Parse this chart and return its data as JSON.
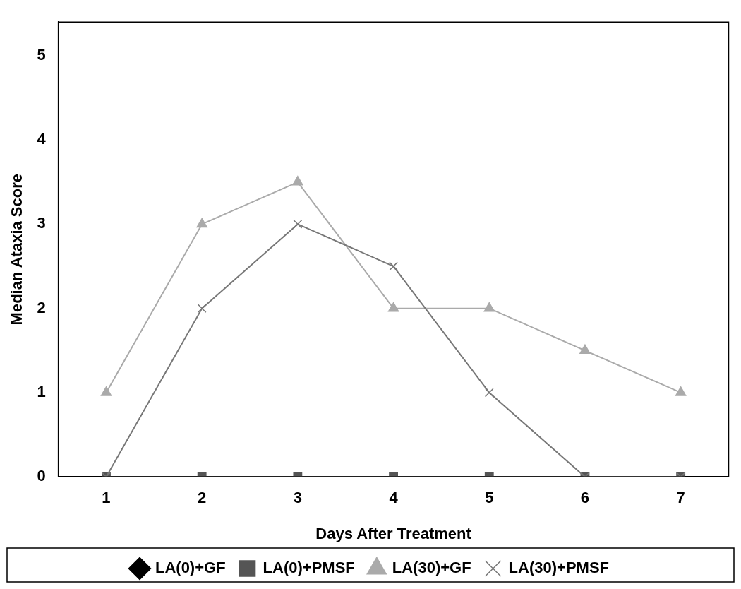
{
  "chart_data": {
    "type": "line",
    "xlabel": "Days After Treatment",
    "ylabel": "Median Ataxia Score",
    "categories": [
      "1",
      "2",
      "3",
      "4",
      "5",
      "6",
      "7"
    ],
    "series": [
      {
        "name": "LA(0)+GF",
        "color": "#000000",
        "marker": "diamond",
        "values": [
          null,
          null,
          null,
          null,
          null,
          null,
          null
        ]
      },
      {
        "name": "LA(0)+PMSF",
        "color": "#555555",
        "marker": "square",
        "values": [
          0,
          0,
          0,
          0,
          0,
          0,
          0
        ]
      },
      {
        "name": "LA(30)+GF",
        "color": "#aaaaaa",
        "marker": "triangle",
        "values": [
          1,
          3,
          3.5,
          2,
          2,
          1.5,
          1
        ]
      },
      {
        "name": "LA(30)+PMSF",
        "color": "#777777",
        "marker": "cross",
        "values": [
          0,
          2,
          3,
          2.5,
          1,
          0,
          0
        ]
      }
    ],
    "ylim": [
      0,
      5.4
    ],
    "yticks": [
      0,
      1,
      2,
      3,
      4,
      5
    ],
    "grid": false,
    "legend": "bottom"
  }
}
